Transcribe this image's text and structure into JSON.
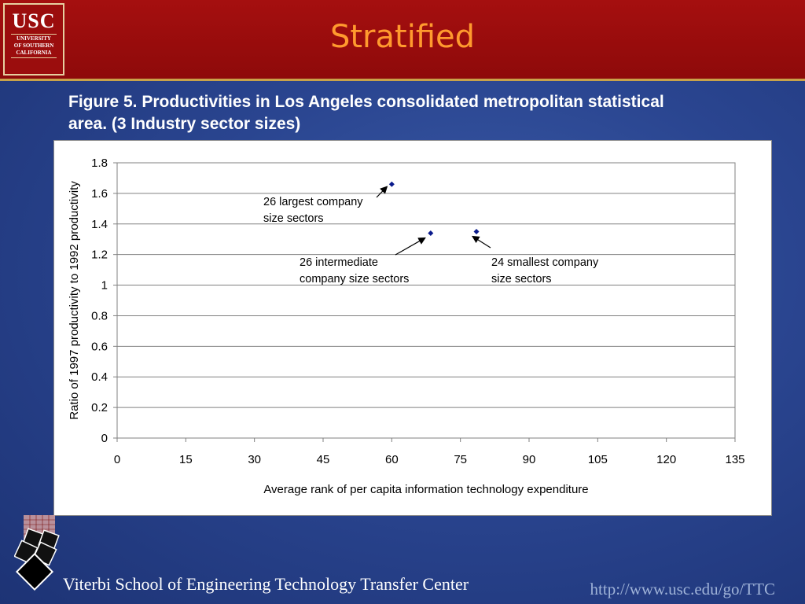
{
  "header": {
    "title": "Stratified",
    "logo": {
      "main": "USC",
      "line1": "UNIVERSITY",
      "line2": "OF SOUTHERN",
      "line3": "CALIFORNIA"
    }
  },
  "caption": {
    "line1": "Figure 5. Productivities in Los Angeles consolidated metropolitan statistical",
    "line2": "area.  (3 Industry sector sizes)"
  },
  "chart_data": {
    "type": "scatter",
    "xlabel": "Average rank of per capita information technology expenditure",
    "ylabel": "Ratio of 1997 productivity to 1992 productivity",
    "xlim": [
      0,
      135
    ],
    "ylim": [
      0,
      1.8
    ],
    "xticks": [
      "0",
      "15",
      "30",
      "45",
      "60",
      "75",
      "90",
      "105",
      "120",
      "135"
    ],
    "yticks": [
      "0",
      "0.2",
      "0.4",
      "0.6",
      "0.8",
      "1",
      "1.2",
      "1.4",
      "1.6",
      "1.8"
    ],
    "grid": true,
    "series": [
      {
        "points": [
          {
            "x": 60,
            "y": 1.66
          },
          {
            "x": 68.5,
            "y": 1.34
          },
          {
            "x": 78.5,
            "y": 1.35
          }
        ]
      }
    ],
    "annotations": [
      {
        "lines": [
          "26 largest company",
          "size sectors"
        ],
        "target": {
          "x": 60,
          "y": 1.66
        }
      },
      {
        "lines": [
          "26 intermediate",
          "company size sectors"
        ],
        "target": {
          "x": 68.5,
          "y": 1.34
        }
      },
      {
        "lines": [
          "24 smallest company",
          "size sectors"
        ],
        "target": {
          "x": 78.5,
          "y": 1.35
        }
      }
    ],
    "marker_color": "#0a1a8c"
  },
  "footer": {
    "left": "Viterbi School of Engineering Technology Transfer Center",
    "right": "http://www.usc.edu/go/TTC"
  }
}
